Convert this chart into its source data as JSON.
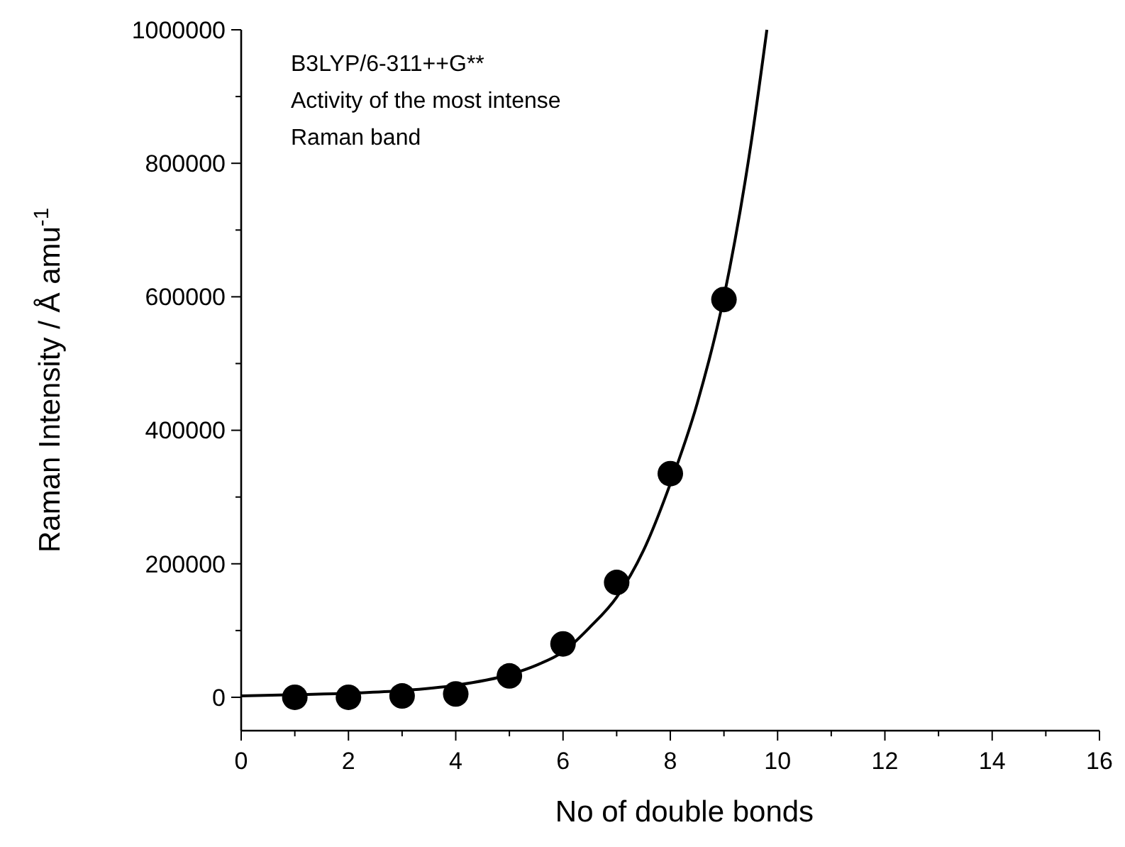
{
  "chart_data": {
    "type": "scatter",
    "xlabel": "No of double bonds",
    "ylabel": "Raman Intensity / Å amu$^{-1}$",
    "annotations": [
      "B3LYP/6-311++G**",
      "Activity of the most intense",
      "Raman band"
    ],
    "xlim": [
      0,
      16
    ],
    "ylim": [
      -50000,
      1000000
    ],
    "xticks": [
      0,
      {
        "value": 1,
        "label": null
      },
      2,
      {
        "value": 3,
        "label": null
      },
      4,
      {
        "value": 5,
        "label": null
      },
      6,
      {
        "value": 7,
        "label": null
      },
      8,
      {
        "value": 9,
        "label": null
      },
      10,
      {
        "value": 11,
        "label": null
      },
      12,
      {
        "value": 13,
        "label": null
      },
      14,
      {
        "value": 15,
        "label": null
      },
      16
    ],
    "yticks": [
      0,
      {
        "value": 100000,
        "label": null
      },
      200000,
      {
        "value": 300000,
        "label": null
      },
      400000,
      {
        "value": 500000,
        "label": null
      },
      600000,
      {
        "value": 700000,
        "label": null
      },
      800000,
      {
        "value": 900000,
        "label": null
      },
      1000000
    ],
    "series": [
      {
        "type": "line",
        "color": "#000000",
        "marker": "none",
        "line_style": "solid",
        "x": [
          0,
          1,
          2,
          3,
          4,
          5,
          5.5,
          6,
          6.5,
          7,
          7.5,
          8,
          8.5,
          9,
          9.5,
          9.8
        ],
        "values": [
          2000,
          4000,
          6000,
          10000,
          18000,
          34000,
          48000,
          68000,
          105000,
          150000,
          220000,
          320000,
          440000,
          600000,
          827000,
          1000000
        ]
      },
      {
        "color": "#000000",
        "marker": "circle",
        "x": [
          1,
          2,
          3,
          4,
          5,
          6,
          7,
          8,
          9
        ],
        "values": [
          0,
          0,
          2000,
          5000,
          32000,
          80000,
          172000,
          335000,
          596000
        ]
      }
    ]
  }
}
